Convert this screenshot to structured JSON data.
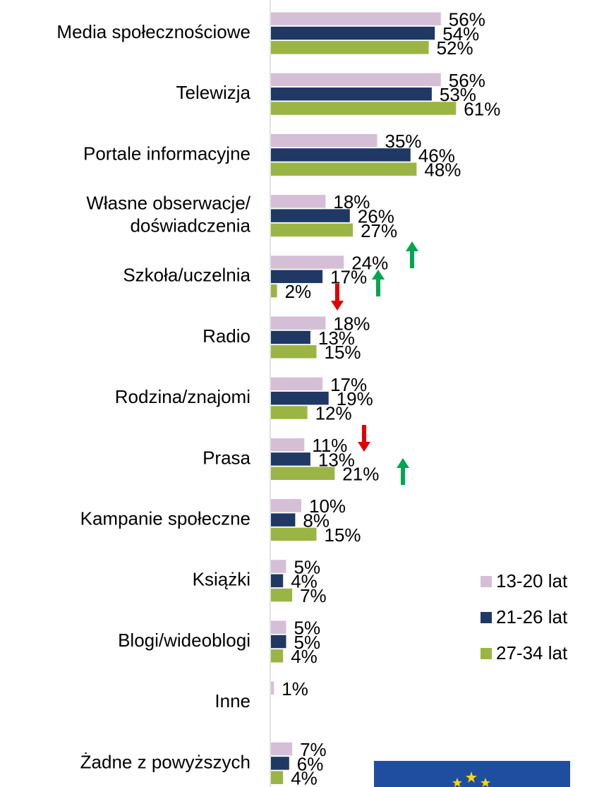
{
  "chart_data": {
    "type": "bar",
    "orientation": "horizontal",
    "categories": [
      "Media społecznościowe",
      "Telewizja",
      "Portale informacyjne",
      "Własne obserwacje/\ndoświadczenia",
      "Szkoła/uczelnia",
      "Radio",
      "Rodzina/znajomi",
      "Prasa",
      "Kampanie społeczne",
      "Książki",
      "Blogi/wideoblogi",
      "Inne",
      "Żadne z powyższych"
    ],
    "series": [
      {
        "name": "13-20 lat",
        "color": "#d5bfd6",
        "values": [
          56,
          56,
          35,
          18,
          24,
          18,
          17,
          11,
          10,
          5,
          5,
          1,
          7
        ],
        "value_labels": [
          "56%",
          "56%",
          "35%",
          "18%",
          "24%",
          "18%",
          "17%",
          "11%",
          "10%",
          "5%",
          "5%",
          "1%",
          "7%"
        ]
      },
      {
        "name": "21-26 lat",
        "color": "#1f3864",
        "values": [
          54,
          53,
          46,
          26,
          17,
          13,
          19,
          13,
          8,
          4,
          5,
          null,
          6
        ],
        "value_labels": [
          "54%",
          "53%",
          "46%",
          "26%",
          "17%",
          "13%",
          "19%",
          "13%",
          "8%",
          "4%",
          "5%",
          null,
          "6%"
        ]
      },
      {
        "name": "27-34 lat",
        "color": "#9bb544",
        "values": [
          52,
          61,
          48,
          27,
          2,
          15,
          12,
          21,
          15,
          7,
          4,
          null,
          4
        ],
        "value_labels": [
          "52%",
          "61%",
          "48%",
          "27%",
          "2%",
          "15%",
          "12%",
          "21%",
          "15%",
          "7%",
          "4%",
          null,
          "4%"
        ]
      }
    ],
    "legend": "right"
  }
}
